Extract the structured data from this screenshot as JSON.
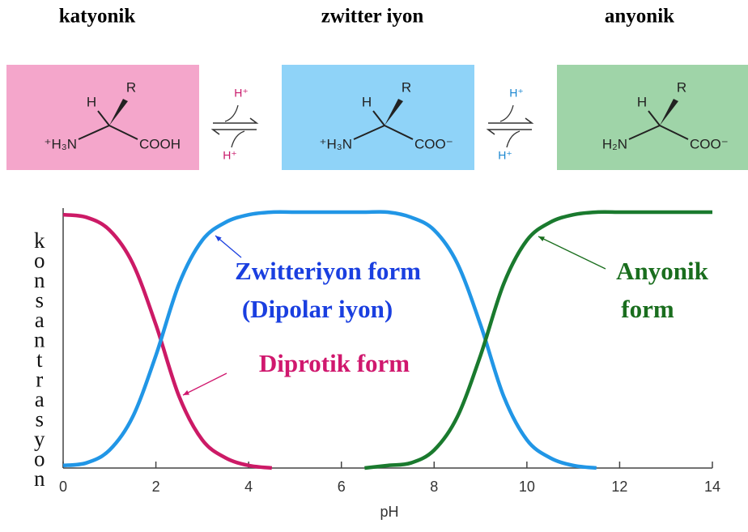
{
  "header": {
    "labels": [
      "katyonik",
      "zwitter iyon",
      "anyonik"
    ]
  },
  "species": [
    {
      "H": "H",
      "R": "R",
      "left": "⁺H₃N",
      "right": "COOH",
      "color": "#f4a6cb"
    },
    {
      "H": "H",
      "R": "R",
      "left": "⁺H₃N",
      "right": "COO⁻",
      "color": "#8fd3f8"
    },
    {
      "H": "H",
      "R": "R",
      "left": "H₂N",
      "right": "COO⁻",
      "color": "#9fd4a8"
    }
  ],
  "equilibria": [
    {
      "top": "H⁺",
      "bottom": "H⁺",
      "color": "#c8186a"
    },
    {
      "top": "H⁺",
      "bottom": "H⁺",
      "color": "#1a86d0"
    }
  ],
  "chart_data": {
    "type": "line",
    "xlabel": "pH",
    "ylabel": "konsantrasyon",
    "xlim": [
      0,
      14
    ],
    "xticks": [
      0,
      2,
      4,
      6,
      8,
      10,
      12,
      14
    ],
    "ylim": [
      0,
      1
    ],
    "series": [
      {
        "color": "#cc1a66",
        "x": [
          0,
          0.5,
          1,
          1.5,
          2,
          2.5,
          3,
          3.5,
          4,
          4.5
        ],
        "values": [
          0.99,
          0.98,
          0.93,
          0.8,
          0.56,
          0.28,
          0.11,
          0.04,
          0.01,
          0
        ]
      },
      {
        "color": "#2196e6",
        "x": [
          0,
          0.5,
          1,
          1.5,
          2,
          2.5,
          3,
          3.5,
          4,
          4.5,
          5,
          5.5,
          6,
          6.5,
          7,
          7.5,
          8,
          8.5,
          9,
          9.5,
          10,
          10.5,
          11,
          11.5
        ],
        "values": [
          0.01,
          0.02,
          0.07,
          0.2,
          0.44,
          0.72,
          0.89,
          0.96,
          0.99,
          1,
          1,
          1,
          1,
          1,
          1,
          0.98,
          0.93,
          0.8,
          0.56,
          0.28,
          0.11,
          0.04,
          0.01,
          0
        ]
      },
      {
        "color": "#1a7a2e",
        "x": [
          6.5,
          7,
          7.5,
          8,
          8.5,
          9,
          9.5,
          10,
          10.5,
          11,
          11.5,
          12,
          12.5,
          13,
          13.5,
          14
        ],
        "values": [
          0,
          0.01,
          0.02,
          0.07,
          0.2,
          0.44,
          0.72,
          0.89,
          0.96,
          0.99,
          1,
          1,
          1,
          1,
          1,
          1
        ]
      }
    ],
    "annotations": [
      {
        "text": "Zwitteriyon form",
        "color": "#1a3fe0"
      },
      {
        "text": "(Dipolar iyon)",
        "color": "#1a3fe0"
      },
      {
        "text": "Diprotik  form",
        "color": "#d0186e"
      },
      {
        "text": "Anyonik",
        "color": "#1a6e1e"
      },
      {
        "text": "form",
        "color": "#1a6e1e"
      }
    ]
  }
}
